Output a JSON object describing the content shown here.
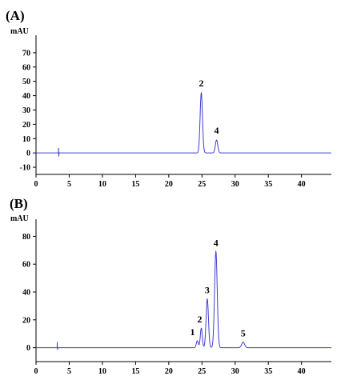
{
  "colors": {
    "trace": "#3f3fd0",
    "axis": "#000000"
  },
  "chart_data": [
    {
      "type": "line",
      "panel_label": "(A)",
      "ylabel": "mAU",
      "xlim": [
        0,
        44.5
      ],
      "ylim": [
        -15,
        80
      ],
      "x_ticks": [
        0,
        5,
        10,
        15,
        20,
        25,
        30,
        35,
        40
      ],
      "y_ticks": [
        -10,
        0,
        10,
        20,
        30,
        40,
        50,
        60,
        70
      ],
      "baseline": 0,
      "artifact": {
        "x": 3.4,
        "top": 3.5,
        "bottom": -2.5
      },
      "peaks": [
        {
          "label": "2",
          "x": 24.9,
          "height": 42,
          "width": 0.18
        },
        {
          "label": "4",
          "x": 27.2,
          "height": 9,
          "width": 0.18
        }
      ]
    },
    {
      "type": "line",
      "panel_label": "(B)",
      "ylabel": "mAU",
      "xlim": [
        0,
        44.5
      ],
      "ylim": [
        -10,
        90
      ],
      "x_ticks": [
        0,
        5,
        10,
        15,
        20,
        25,
        30,
        35,
        40
      ],
      "y_ticks": [
        0,
        20,
        40,
        60,
        80
      ],
      "baseline": 0,
      "artifact": {
        "x": 3.2,
        "top": 4,
        "bottom": -1.5
      },
      "peaks": [
        {
          "label": "1",
          "x": 24.3,
          "height": 5,
          "width": 0.15
        },
        {
          "label": "2",
          "x": 24.9,
          "height": 14,
          "width": 0.15
        },
        {
          "label": "3",
          "x": 25.8,
          "height": 35,
          "width": 0.18
        },
        {
          "label": "4",
          "x": 27.1,
          "height": 69,
          "width": 0.2
        },
        {
          "label": "5",
          "x": 31.2,
          "height": 4,
          "width": 0.22
        }
      ]
    }
  ]
}
